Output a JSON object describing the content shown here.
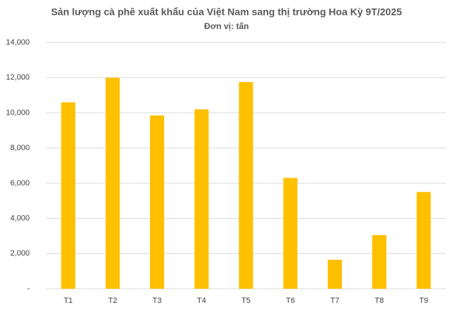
{
  "chart_data": {
    "type": "bar",
    "title": "Sản lượng cà phê xuất khẩu của Việt Nam sang thị trường Hoa Kỳ 9T/2025",
    "subtitle": "Đơn vị: tấn",
    "categories": [
      "T1",
      "T2",
      "T3",
      "T4",
      "T5",
      "T6",
      "T7",
      "T8",
      "T9"
    ],
    "values": [
      10600,
      12000,
      9850,
      10200,
      11750,
      6300,
      1650,
      3050,
      5500
    ],
    "color": "#ffc000",
    "ylim": [
      0,
      14000
    ],
    "yticks": [
      {
        "value": 0,
        "label": "-"
      },
      {
        "value": 2000,
        "label": "2,000"
      },
      {
        "value": 4000,
        "label": "4,000"
      },
      {
        "value": 6000,
        "label": "6,000"
      },
      {
        "value": 8000,
        "label": "8,000"
      },
      {
        "value": 10000,
        "label": "10,000"
      },
      {
        "value": 12000,
        "label": "12,000"
      },
      {
        "value": 14000,
        "label": "14,000"
      }
    ],
    "grid": true
  }
}
